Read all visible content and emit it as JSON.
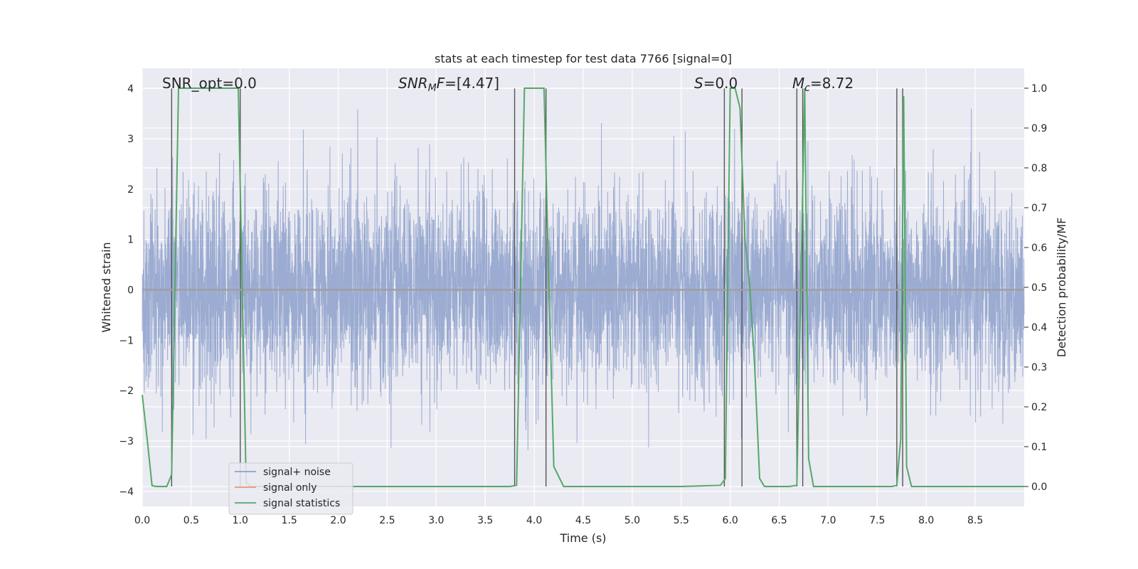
{
  "chart_data": {
    "type": "line",
    "title": "stats at each timestep for test data 7766 [signal=0]",
    "xlabel": "Time (s)",
    "ylabel": "Whitened strain",
    "y2label": "Detection probability/MF",
    "xlim": [
      0,
      9.0
    ],
    "ylim": [
      -4.3,
      4.4
    ],
    "y2lim": [
      -0.05,
      1.05
    ],
    "xticks": [
      "0.0",
      "0.5",
      "1.0",
      "1.5",
      "2.0",
      "2.5",
      "3.0",
      "3.5",
      "4.0",
      "4.5",
      "5.0",
      "5.5",
      "6.0",
      "6.5",
      "7.0",
      "7.5",
      "8.0",
      "8.5"
    ],
    "yticks": [
      "4",
      "3",
      "2",
      "1",
      "0",
      "−1",
      "−2",
      "−3",
      "−4"
    ],
    "y2ticks": [
      "1.0",
      "0.9",
      "0.8",
      "0.7",
      "0.6",
      "0.5",
      "0.4",
      "0.3",
      "0.2",
      "0.1",
      "0.0"
    ],
    "annotations": {
      "snr_opt": "SNR_opt=0.0",
      "snr_mf_sym": "SNR",
      "snr_mf_sub": "M",
      "snr_mf_f": "F",
      "snr_mf_val": "=[4.47]",
      "s_sym": "S",
      "s_val": "=0.0",
      "mc_sym": "M",
      "mc_sub": "c",
      "mc_val": "=8.72"
    },
    "legend": {
      "placement": "lower-left",
      "entries": [
        "signal+ noise",
        "signal only",
        "signal statistics"
      ]
    },
    "colors": {
      "noise": "#8da0cb",
      "signal_only": "#e8957a",
      "statistics": "#55a868",
      "vlines": "#555555",
      "background": "#eaeaf2",
      "grid": "#ffffff"
    },
    "series": [
      {
        "name": "signal+ noise",
        "description_kind": "whitened noise, amplitude mostly within ±2, peaks to ±3.9",
        "amplitude_typ": 1.6,
        "amplitude_max": 3.9
      },
      {
        "name": "signal only",
        "values_constant": 0.0
      },
      {
        "name": "signal statistics",
        "axis": "right",
        "x": [
          0.0,
          0.05,
          0.1,
          0.15,
          0.2,
          0.25,
          0.3,
          0.37,
          0.45,
          0.55,
          0.7,
          0.9,
          0.98,
          1.02,
          1.06,
          1.1,
          1.2,
          1.5,
          2.0,
          2.5,
          3.0,
          3.5,
          3.75,
          3.82,
          3.86,
          3.9,
          4.0,
          4.1,
          4.15,
          4.2,
          4.3,
          4.5,
          5.0,
          5.5,
          5.9,
          5.95,
          6.0,
          6.05,
          6.1,
          6.15,
          6.2,
          6.25,
          6.3,
          6.35,
          6.4,
          6.6,
          6.68,
          6.72,
          6.76,
          6.8,
          6.85,
          6.9,
          7.0,
          7.5,
          7.65,
          7.7,
          7.74,
          7.77,
          7.8,
          7.85,
          7.9,
          8.0,
          8.5,
          9.0
        ],
        "values": [
          0.23,
          0.12,
          0.002,
          0.0,
          0.0,
          0.0,
          0.03,
          1.0,
          1.0,
          1.0,
          1.0,
          1.0,
          1.0,
          0.5,
          0.01,
          0.0,
          0.0,
          0.0,
          0.0,
          0.0,
          0.0,
          0.0,
          0.0,
          0.003,
          0.5,
          1.0,
          1.0,
          1.0,
          0.5,
          0.05,
          0.0,
          0.0,
          0.0,
          0.0,
          0.003,
          0.02,
          1.0,
          1.0,
          0.95,
          0.62,
          0.5,
          0.3,
          0.02,
          0.0,
          0.0,
          0.0,
          0.003,
          0.5,
          1.0,
          0.07,
          0.0,
          0.0,
          0.0,
          0.0,
          0.0,
          0.003,
          0.12,
          0.98,
          0.05,
          0.0,
          0.0,
          0.0,
          0.0,
          0.0
        ]
      }
    ],
    "vertical_markers_s": [
      0.3,
      1.0,
      3.8,
      4.12,
      5.94,
      6.12,
      6.68,
      6.74,
      7.7,
      7.76
    ]
  }
}
